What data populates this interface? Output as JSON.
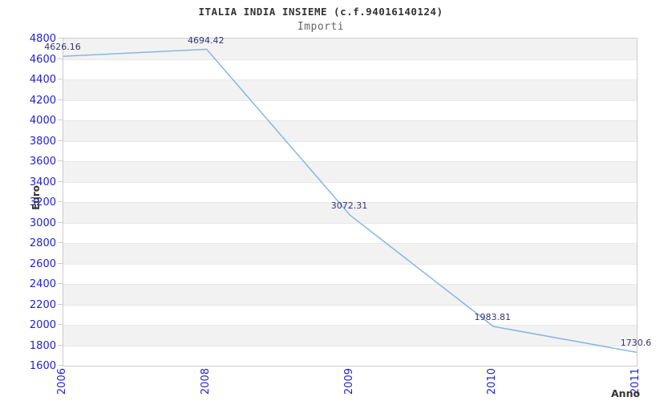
{
  "header": {
    "title": "ITALIA INDIA INSIEME (c.f.94016140124)",
    "subtitle": "Importi"
  },
  "chart_data": {
    "type": "line",
    "title": "ITALIA INDIA INSIEME (c.f.94016140124)",
    "subtitle": "Importi",
    "xlabel": "Anno",
    "ylabel": "Euro",
    "categories": [
      "2006",
      "2008",
      "2009",
      "2010",
      "2011"
    ],
    "series": [
      {
        "name": "Importi",
        "values": [
          4626.16,
          4694.42,
          3072.31,
          1983.81,
          1730.6
        ],
        "point_labels": [
          "4626.16",
          "4694.42",
          "3072.31",
          "1983.81",
          "1730.6"
        ]
      }
    ],
    "ylim": [
      1600,
      4800
    ],
    "ytick_step": 200,
    "yticks": [
      1600,
      1800,
      2000,
      2200,
      2400,
      2600,
      2800,
      3000,
      3200,
      3400,
      3600,
      3800,
      4000,
      4200,
      4400,
      4600,
      4800
    ],
    "grid": "horizontal-alternating-bands",
    "legend": "none",
    "colors": {
      "line": "#7fb2e5",
      "tick_label": "#2323cc",
      "point_label": "#333377",
      "title": "#333333",
      "subtitle": "#666666",
      "axis_title": "#333333",
      "band_gray": "#f2f2f2",
      "band_white": "#ffffff",
      "plot_border": "#cccccc",
      "grid_line": "#e8e8e8",
      "tick_mark": "#cccccc"
    }
  }
}
